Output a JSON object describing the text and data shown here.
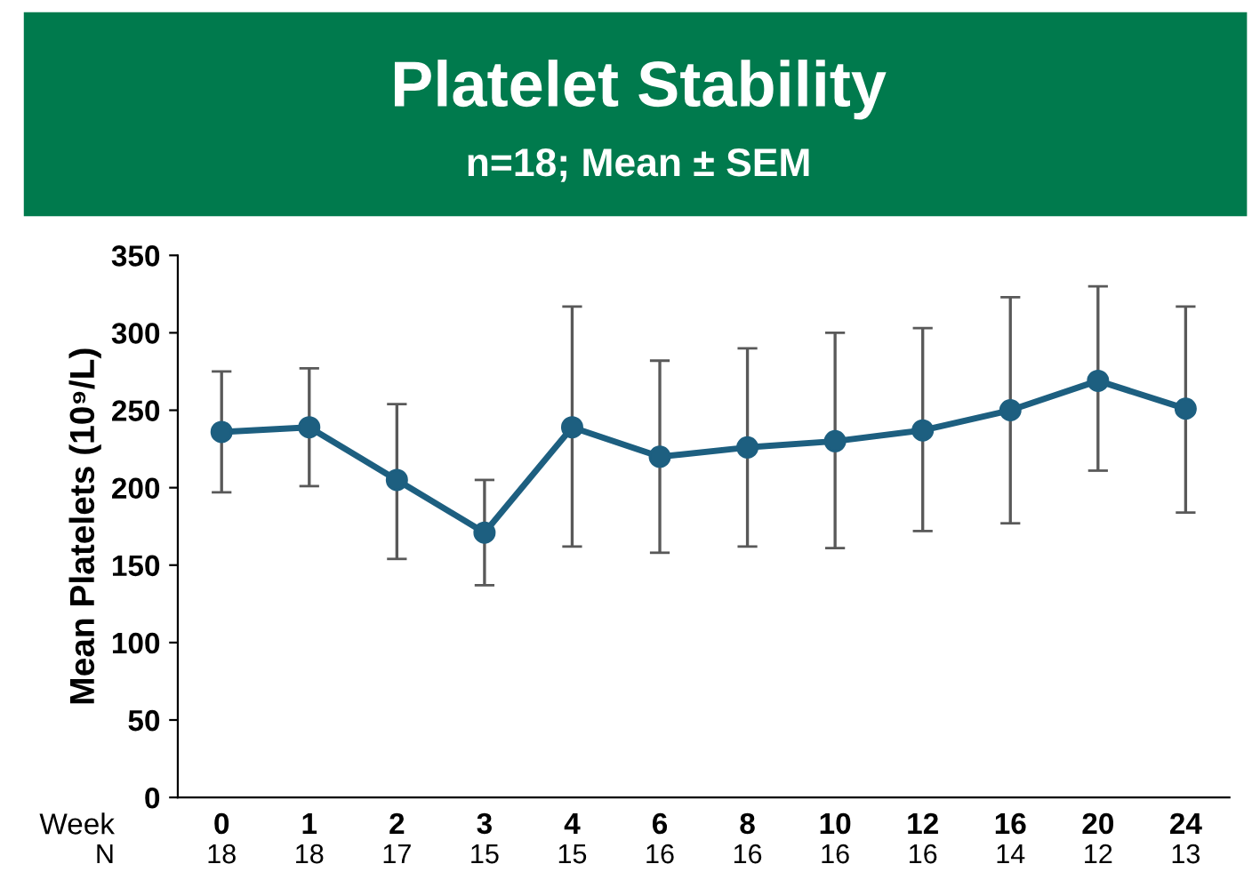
{
  "chart_data": {
    "type": "line",
    "title": "Platelet Stability",
    "subtitle": "n=18; Mean ± SEM",
    "xlabel": "Week",
    "ylabel": "Mean Platelets (10⁹/L)",
    "categories": [
      "0",
      "1",
      "2",
      "3",
      "4",
      "6",
      "8",
      "10",
      "12",
      "16",
      "20",
      "24"
    ],
    "series": [
      {
        "color": "#1d5f80",
        "values": [
          236,
          239,
          205,
          171,
          239,
          220,
          226,
          230,
          237,
          250,
          269,
          251
        ],
        "errors": [
          [
            197,
            275
          ],
          [
            201,
            277
          ],
          [
            154,
            254
          ],
          [
            137,
            205
          ],
          [
            162,
            317
          ],
          [
            158,
            282
          ],
          [
            162,
            290
          ],
          [
            161,
            300
          ],
          [
            172,
            303
          ],
          [
            177,
            323
          ],
          [
            211,
            330
          ],
          [
            184,
            317
          ]
        ]
      }
    ],
    "annotations": [
      "N",
      "18",
      "18",
      "17",
      "15",
      "15",
      "16",
      "16",
      "16",
      "16",
      "14",
      "12",
      "13"
    ],
    "ylim": [
      0,
      350
    ],
    "yticks": [
      0,
      50,
      100,
      150,
      200,
      250,
      300,
      350
    ],
    "marker": "circle",
    "line_style": "solid",
    "grid": false,
    "legend": false
  }
}
